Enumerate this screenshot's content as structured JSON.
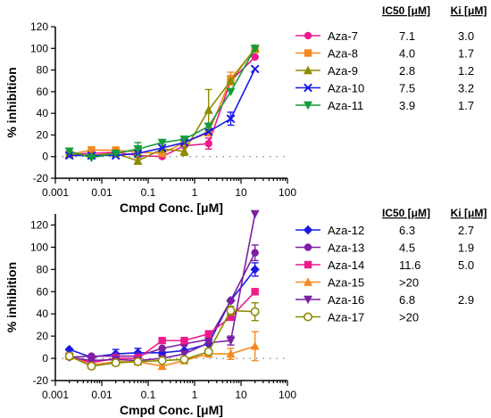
{
  "chart_data": [
    {
      "type": "line",
      "xscale": "log",
      "xlabel": "Cmpd Conc. [μM]",
      "ylabel": "% inhibition",
      "xlim": [
        0.001,
        100
      ],
      "ylim": [
        -20,
        120
      ],
      "xticks": [
        0.001,
        0.01,
        0.1,
        1,
        10,
        100
      ],
      "xtick_labels": [
        "0.001",
        "0.01",
        "0.1",
        "1",
        "10",
        "100"
      ],
      "yticks": [
        -20,
        0,
        20,
        40,
        60,
        80,
        100,
        120
      ],
      "ytick_labels": [
        "-20",
        "0",
        "20",
        "40",
        "60",
        "80",
        "100",
        "120"
      ],
      "x": [
        0.002,
        0.006,
        0.02,
        0.06,
        0.2,
        0.6,
        2,
        6,
        20
      ],
      "legend_headers": {
        "ic50": "IC50 [μM]",
        "ki": "Ki [μM]"
      },
      "series": [
        {
          "name": "Aza-7",
          "color": "#ee1a8c",
          "marker": "circle",
          "ic50": "7.1",
          "ki": "3.0",
          "values": [
            2,
            3,
            4,
            1,
            0,
            10,
            12,
            70,
            92
          ],
          "errors": [
            0,
            0,
            0,
            0,
            0,
            0,
            5,
            0,
            0
          ]
        },
        {
          "name": "Aza-8",
          "color": "#f5891f",
          "marker": "square",
          "ic50": "4.0",
          "ki": "1.7",
          "values": [
            2,
            6,
            6,
            4,
            3,
            13,
            22,
            72,
            99
          ],
          "errors": [
            0,
            3,
            0,
            0,
            0,
            0,
            0,
            6,
            0
          ]
        },
        {
          "name": "Aza-9",
          "color": "#8d8b00",
          "marker": "triangle-up",
          "ic50": "2.8",
          "ki": "1.2",
          "values": [
            2,
            1,
            3,
            -4,
            7,
            5,
            43,
            70,
            100
          ],
          "errors": [
            0,
            0,
            0,
            3,
            0,
            4,
            19,
            0,
            0
          ]
        },
        {
          "name": "Aza-10",
          "color": "#1a1ae8",
          "marker": "x",
          "ic50": "7.5",
          "ki": "3.2",
          "values": [
            1,
            1,
            1,
            3,
            8,
            13,
            23,
            35,
            81
          ],
          "errors": [
            0,
            0,
            0,
            0,
            0,
            0,
            0,
            6,
            0
          ]
        },
        {
          "name": "Aza-11",
          "color": "#139c3a",
          "marker": "triangle-down",
          "ic50": "3.9",
          "ki": "1.7",
          "values": [
            5,
            -1,
            3,
            7,
            13,
            16,
            28,
            60,
            100
          ],
          "errors": [
            0,
            0,
            0,
            6,
            0,
            0,
            0,
            0,
            0
          ]
        }
      ]
    },
    {
      "type": "line",
      "xscale": "log",
      "xlabel": "Cmpd Conc. [μM]",
      "ylabel": "% inhibition",
      "xlim": [
        0.001,
        100
      ],
      "ylim": [
        -20,
        130
      ],
      "xticks": [
        0.001,
        0.01,
        0.1,
        1,
        10,
        100
      ],
      "xtick_labels": [
        "0.001",
        "0.01",
        "0.1",
        "1",
        "10",
        "100"
      ],
      "yticks": [
        -20,
        0,
        20,
        40,
        60,
        80,
        100,
        120
      ],
      "ytick_labels": [
        "-20",
        "0",
        "20",
        "40",
        "60",
        "80",
        "100",
        "120"
      ],
      "x": [
        0.002,
        0.006,
        0.02,
        0.06,
        0.2,
        0.6,
        2,
        6,
        20
      ],
      "legend_headers": {
        "ic50": "IC50 [μM]",
        "ki": "Ki [μM]"
      },
      "series": [
        {
          "name": "Aza-12",
          "color": "#1a1ae8",
          "marker": "diamond",
          "ic50": "6.3",
          "ki": "2.7",
          "values": [
            8,
            1,
            4,
            5,
            5,
            7,
            13,
            52,
            80
          ],
          "errors": [
            0,
            0,
            4,
            4,
            0,
            0,
            0,
            0,
            6
          ]
        },
        {
          "name": "Aza-13",
          "color": "#7c1fa3",
          "marker": "circle",
          "ic50": "4.5",
          "ki": "1.9",
          "values": [
            1,
            2,
            2,
            2,
            9,
            13,
            17,
            52,
            95
          ],
          "errors": [
            0,
            0,
            0,
            0,
            0,
            0,
            0,
            0,
            7
          ]
        },
        {
          "name": "Aza-14",
          "color": "#ee1a8c",
          "marker": "square",
          "ic50": "11.6",
          "ki": "5.0",
          "values": [
            2,
            -4,
            0,
            0,
            16,
            16,
            22,
            37,
            60
          ],
          "errors": [
            0,
            0,
            0,
            0,
            0,
            0,
            0,
            0,
            0
          ]
        },
        {
          "name": "Aza-15",
          "color": "#f5891f",
          "marker": "triangle-up",
          "ic50": ">20",
          "ki": "",
          "values": [
            2,
            -6,
            -3,
            -3,
            -7,
            -2,
            4,
            4,
            11
          ],
          "errors": [
            0,
            0,
            0,
            0,
            0,
            0,
            0,
            5,
            13
          ]
        },
        {
          "name": "Aza-16",
          "color": "#7c1fa3",
          "marker": "triangle-down",
          "ic50": "6.8",
          "ki": "2.9",
          "values": [
            1,
            -2,
            -1,
            -2,
            0,
            4,
            14,
            16,
            130
          ],
          "errors": [
            0,
            0,
            0,
            0,
            0,
            0,
            0,
            4,
            0
          ]
        },
        {
          "name": "Aza-17",
          "color": "#8d8b00",
          "marker": "open-circle",
          "ic50": ">20",
          "ki": "",
          "values": [
            2,
            -7,
            -4,
            -3,
            -2,
            -1,
            6,
            43,
            42
          ],
          "errors": [
            0,
            0,
            0,
            0,
            0,
            0,
            0,
            4,
            8
          ]
        }
      ]
    }
  ]
}
